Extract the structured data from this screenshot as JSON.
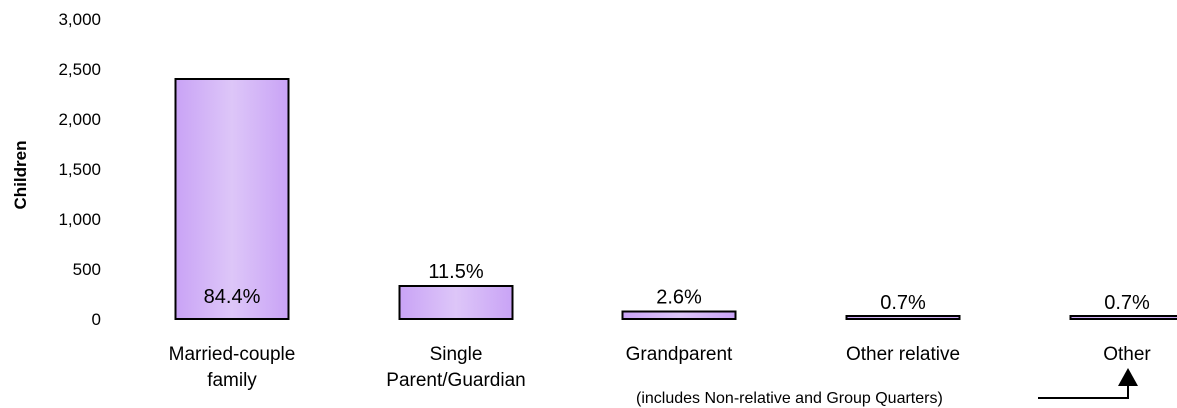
{
  "chart_data": {
    "type": "bar",
    "ylabel": "Children",
    "ylim": [
      0,
      3000
    ],
    "yticks": [
      "3,000",
      "2,500",
      "2,000",
      "1,500",
      "1,000",
      "500",
      "0"
    ],
    "ytick_values": [
      3000,
      2500,
      2000,
      1500,
      1000,
      500,
      0
    ],
    "categories": [
      [
        "Married-couple",
        "family"
      ],
      [
        "Single",
        "Parent/Guardian"
      ],
      [
        "Grandparent"
      ],
      [
        "Other relative"
      ],
      [
        "Other"
      ]
    ],
    "values": [
      2400,
      330,
      75,
      20,
      20
    ],
    "data_labels": [
      "84.4%",
      "11.5%",
      "2.6%",
      "0.7%",
      "0.7%"
    ],
    "annotation": "(includes Non-relative and Group Quarters)",
    "bar_fill": "#d6b8f5",
    "bar_fill_dark": "#b98cf0",
    "grid": false,
    "legend": false
  }
}
